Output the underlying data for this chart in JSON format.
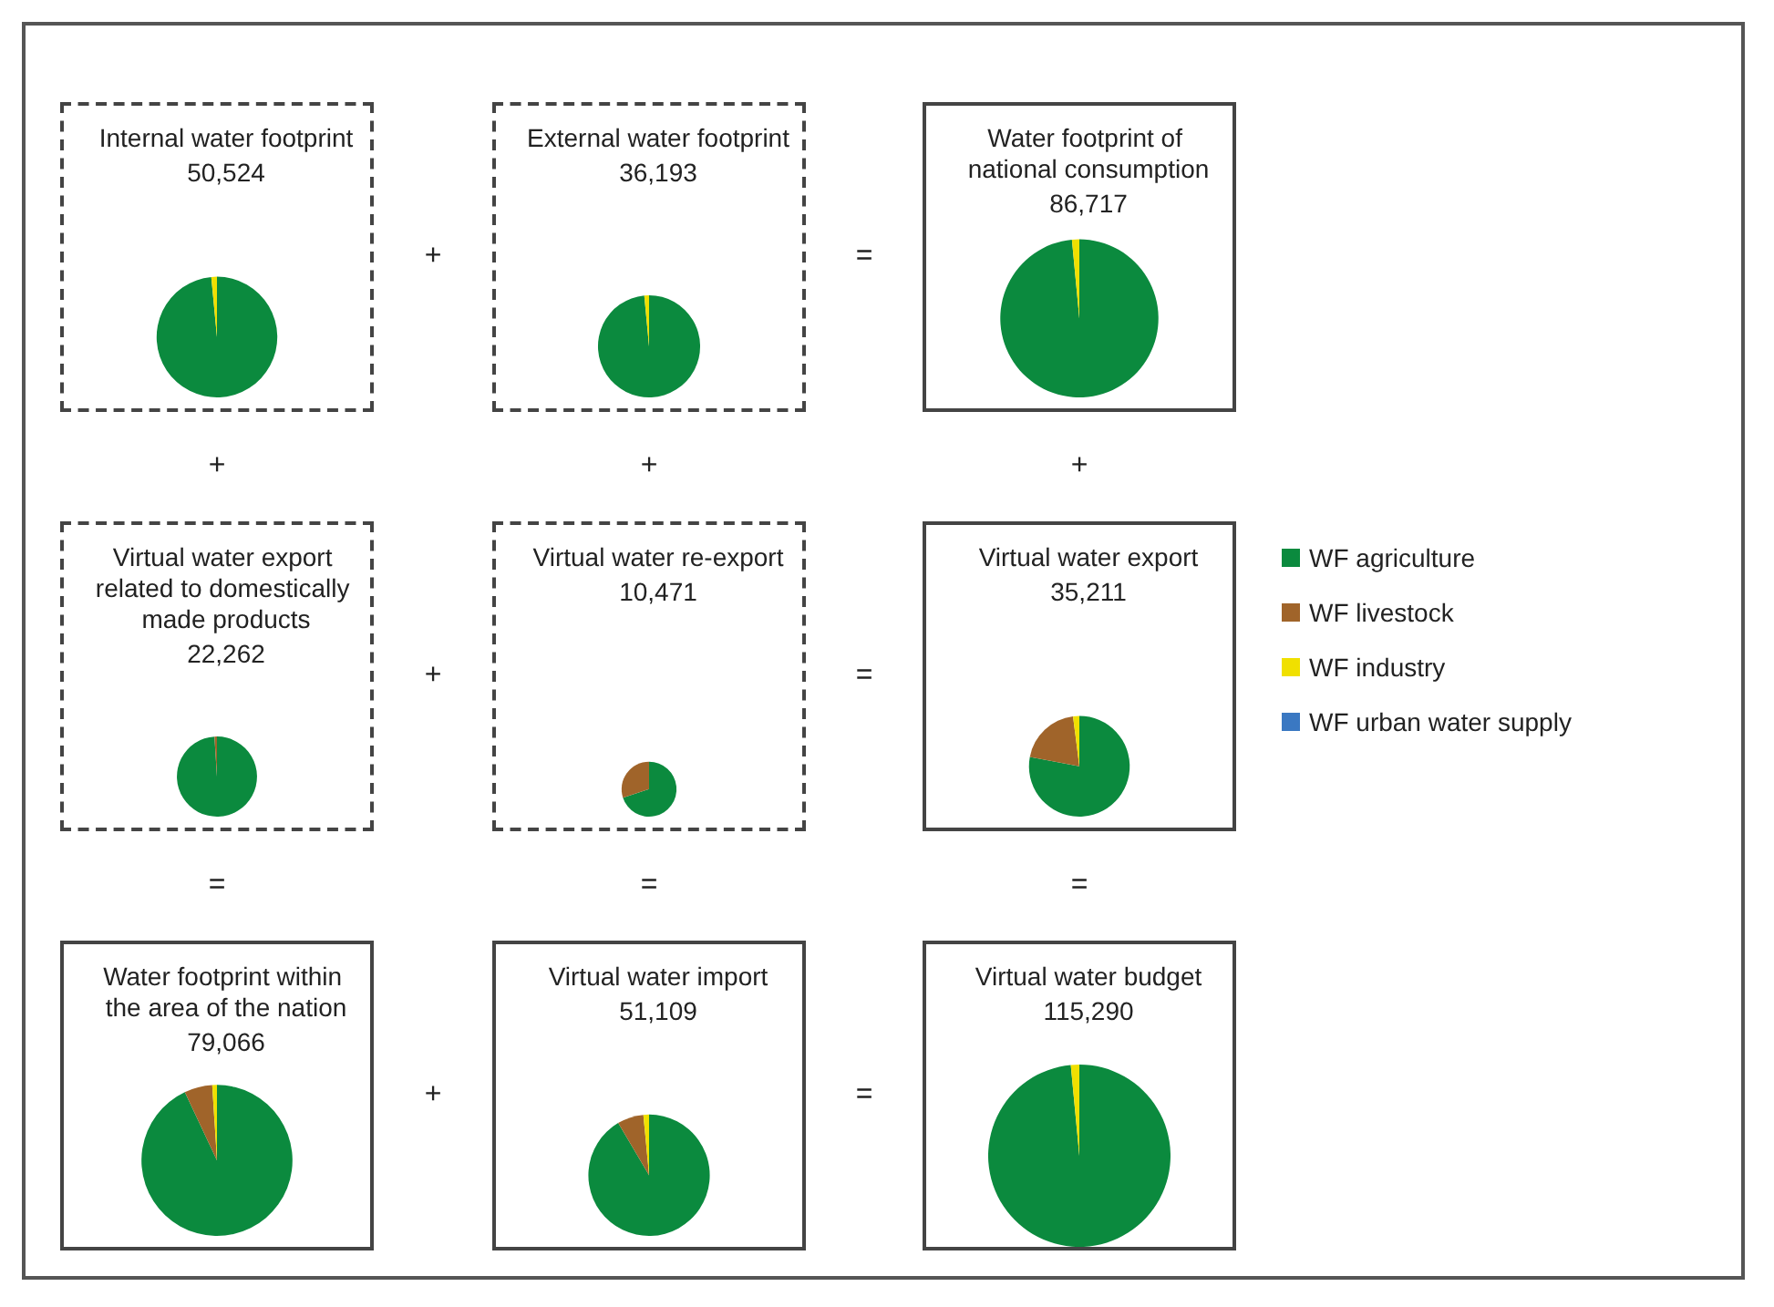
{
  "chart_data": [
    {
      "type": "pie",
      "title": "Internal water footprint",
      "subtitle": "50,524",
      "line_style": "dashed",
      "annotations": [
        "+",
        "+"
      ],
      "categories": [
        null,
        null,
        null,
        null
      ],
      "colors": [
        "#0b8a3e",
        "#a0642a",
        "#f0e000",
        "#3a78c2"
      ],
      "values": [
        98.5,
        0,
        1.5,
        0
      ]
    },
    {
      "type": "pie",
      "title": "External water footprint",
      "subtitle": "36,193",
      "line_style": "dashed",
      "annotations": [
        "=",
        "+"
      ],
      "categories": [
        null,
        null,
        null,
        null
      ],
      "colors": [
        "#0b8a3e",
        "#a0642a",
        "#f0e000",
        "#3a78c2"
      ],
      "values": [
        98.5,
        0,
        1.5,
        0
      ]
    },
    {
      "type": "pie",
      "title": "Water footprint of national consumption",
      "subtitle": "86,717",
      "line_style": "solid",
      "annotations": [
        "+"
      ],
      "categories": [
        null,
        null,
        null,
        null
      ],
      "colors": [
        "#0b8a3e",
        "#a0642a",
        "#f0e000",
        "#3a78c2"
      ],
      "values": [
        98.5,
        0,
        1.5,
        0
      ]
    },
    {
      "type": "pie",
      "title": "Virtual water export related to domestically made products",
      "subtitle": "22,262",
      "line_style": "dashed",
      "annotations": [
        "+",
        "="
      ],
      "categories": [
        null,
        null,
        null,
        null
      ],
      "colors": [
        "#0b8a3e",
        "#a0642a",
        "#f0e000",
        "#3a78c2"
      ],
      "values": [
        99,
        1,
        0,
        0
      ]
    },
    {
      "type": "pie",
      "title": "Virtual water re-export",
      "subtitle": "10,471",
      "line_style": "dashed",
      "annotations": [
        "=",
        "="
      ],
      "categories": [
        null,
        null,
        null,
        null
      ],
      "colors": [
        "#0b8a3e",
        "#a0642a",
        "#f0e000",
        "#3a78c2"
      ],
      "values": [
        70,
        30,
        0,
        0
      ]
    },
    {
      "type": "pie",
      "title": "Virtual water export",
      "subtitle": "35,211",
      "line_style": "solid",
      "legend": "right",
      "annotations": [
        "="
      ],
      "categories": [
        "WF agriculture",
        "WF livestock",
        "WF industry",
        "WF urban water supply"
      ],
      "colors": [
        "#0b8a3e",
        "#a0642a",
        "#f0e000",
        "#3a78c2"
      ],
      "values": [
        78,
        20,
        2,
        0
      ]
    },
    {
      "type": "pie",
      "title": "Water footprint within the area of the nation",
      "subtitle": "79,066",
      "line_style": "solid",
      "annotations": [
        "+"
      ],
      "categories": [
        null,
        null,
        null,
        null
      ],
      "colors": [
        "#0b8a3e",
        "#a0642a",
        "#f0e000",
        "#3a78c2"
      ],
      "values": [
        93,
        6,
        1,
        0
      ]
    },
    {
      "type": "pie",
      "title": "Virtual water import",
      "subtitle": "51,109",
      "line_style": "solid",
      "annotations": [
        "="
      ],
      "categories": [
        null,
        null,
        null,
        null
      ],
      "colors": [
        "#0b8a3e",
        "#a0642a",
        "#f0e000",
        "#3a78c2"
      ],
      "values": [
        91.5,
        7,
        1.5,
        0
      ]
    },
    {
      "type": "pie",
      "title": "Virtual water budget",
      "subtitle": "115,290",
      "line_style": "solid",
      "categories": [
        null,
        null,
        null,
        null
      ],
      "colors": [
        "#0b8a3e",
        "#a0642a",
        "#f0e000",
        "#3a78c2"
      ],
      "values": [
        98.5,
        0,
        1.5,
        0
      ]
    }
  ]
}
